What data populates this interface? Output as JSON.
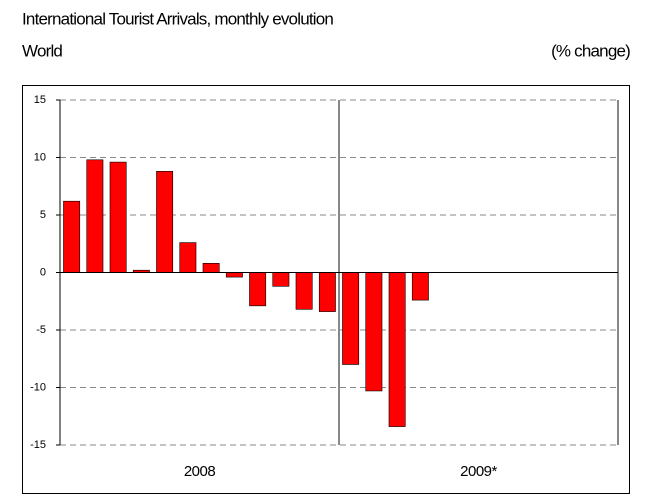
{
  "chart_data": {
    "type": "bar",
    "title": "International Tourist Arrivals, monthly evolution",
    "subtitle": "World",
    "unit_label": "(% change)",
    "groups": [
      "2008",
      "2009*"
    ],
    "categories": [
      null,
      null,
      null,
      null,
      null,
      null,
      null,
      null,
      null,
      null,
      null,
      null,
      null,
      null,
      null,
      null,
      null,
      null,
      null,
      null,
      null,
      null,
      null,
      null
    ],
    "values": [
      6.2,
      9.8,
      9.6,
      0.2,
      8.8,
      2.6,
      0.8,
      -0.4,
      -2.9,
      -1.2,
      -3.2,
      -3.4,
      -8.0,
      -10.3,
      -13.4,
      -2.4,
      null,
      null,
      null,
      null,
      null,
      null,
      null,
      null
    ],
    "color": "#ff0000",
    "ylim": [
      -15,
      15
    ],
    "yticks": [
      15,
      10,
      5,
      0,
      -5,
      -10,
      -15
    ],
    "grid": true
  }
}
